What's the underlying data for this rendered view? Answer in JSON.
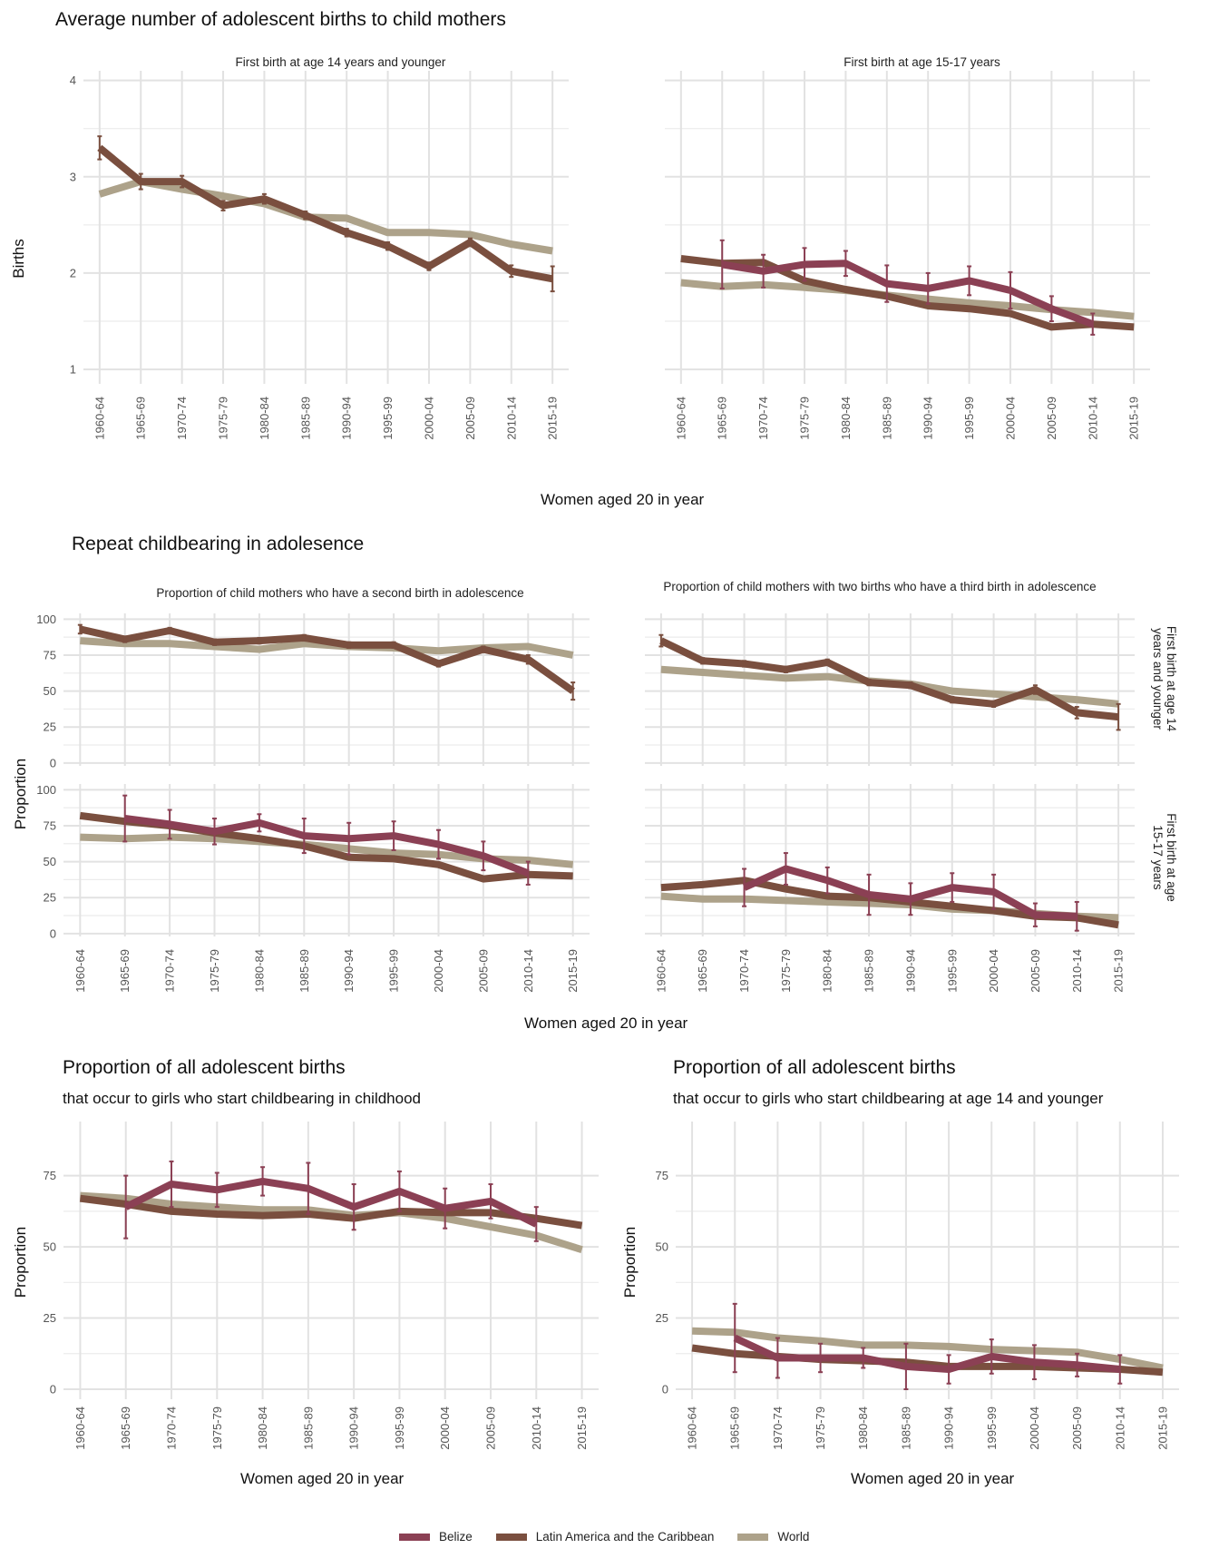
{
  "colors": {
    "Belize": "#8b4054",
    "Latin America and the Caribbean": "#7a4f3f",
    "World": "#ada28a"
  },
  "sections": {
    "s1": {
      "title": "Average number of adolescent births to child mothers",
      "xlabel": "Women aged 20 in year",
      "ylabel": "Births"
    },
    "s2": {
      "title": "Repeat childbearing in adolesence",
      "xlabel": "Women aged 20 in year",
      "ylabel": "Proportion",
      "col_titles": [
        "Proportion of child mothers who have a second birth in adolescence",
        "Proportion of child mothers with two births who have a third birth in adolescence"
      ],
      "row_strips": [
        "First birth at age 14 years and younger",
        "First birth at age 15-17 years"
      ]
    },
    "s3": [
      {
        "title": "Proportion of all adolescent births",
        "subtitle": "that occur to girls who start childbearing in childhood",
        "xlabel": "Women aged 20 in year",
        "ylabel": "Proportion"
      },
      {
        "title": "Proportion of all adolescent births",
        "subtitle": "that occur to girls who start childbearing at age 14 and younger",
        "xlabel": "Women aged 20 in year",
        "ylabel": "Proportion"
      }
    ]
  },
  "legend": [
    "Belize",
    "Latin America and the Caribbean",
    "World"
  ],
  "chart_data": [
    {
      "id": "c1",
      "type": "line",
      "title": "First birth at age 14 years and younger",
      "ylim": [
        0.85,
        4.1
      ],
      "yticks": [
        1,
        2,
        3,
        4
      ],
      "categories": [
        "1960-64",
        "1965-69",
        "1970-74",
        "1975-79",
        "1980-84",
        "1985-89",
        "1990-94",
        "1995-99",
        "2000-04",
        "2005-09",
        "2010-14",
        "2015-19"
      ],
      "series": [
        {
          "name": "World",
          "values": [
            2.82,
            2.95,
            2.87,
            2.8,
            2.72,
            2.58,
            2.57,
            2.42,
            2.42,
            2.4,
            2.3,
            2.23
          ]
        },
        {
          "name": "Latin America and the Caribbean",
          "values": [
            3.3,
            2.95,
            2.95,
            2.7,
            2.77,
            2.6,
            2.42,
            2.28,
            2.07,
            2.32,
            2.02,
            1.94
          ],
          "err": [
            0.12,
            0.08,
            0.06,
            0.05,
            0.05,
            0.04,
            0.04,
            0.04,
            0.04,
            0.04,
            0.06,
            0.13
          ]
        }
      ]
    },
    {
      "id": "c2",
      "type": "line",
      "title": "First birth at age 15-17 years",
      "ylim": [
        0.85,
        4.1
      ],
      "yticks": [
        1,
        2,
        3,
        4
      ],
      "categories": [
        "1960-64",
        "1965-69",
        "1970-74",
        "1975-79",
        "1980-84",
        "1985-89",
        "1990-94",
        "1995-99",
        "2000-04",
        "2005-09",
        "2010-14",
        "2015-19"
      ],
      "series": [
        {
          "name": "World",
          "values": [
            1.9,
            1.86,
            1.88,
            1.85,
            1.82,
            1.77,
            1.73,
            1.69,
            1.66,
            1.62,
            1.59,
            1.55
          ]
        },
        {
          "name": "Latin America and the Caribbean",
          "values": [
            2.15,
            2.1,
            2.11,
            1.92,
            1.83,
            1.76,
            1.66,
            1.63,
            1.58,
            1.44,
            1.47,
            1.44
          ]
        },
        {
          "name": "Belize",
          "values": [
            null,
            2.09,
            2.02,
            2.09,
            2.1,
            1.89,
            1.84,
            1.92,
            1.82,
            1.63,
            1.47,
            null
          ],
          "err": [
            null,
            0.25,
            0.17,
            0.17,
            0.13,
            0.19,
            0.16,
            0.15,
            0.19,
            0.13,
            0.11,
            null
          ]
        }
      ]
    },
    {
      "id": "c3",
      "type": "line",
      "title": "Proportion of child mothers who have a second birth in adolescence",
      "facet": "First birth at age 14 years and younger",
      "ylim": [
        -2,
        104
      ],
      "yticks": [
        0,
        25,
        50,
        75,
        100
      ],
      "categories": [
        "1960-64",
        "1965-69",
        "1970-74",
        "1975-79",
        "1980-84",
        "1985-89",
        "1990-94",
        "1995-99",
        "2000-04",
        "2005-09",
        "2010-14",
        "2015-19"
      ],
      "series": [
        {
          "name": "World",
          "values": [
            85,
            83,
            83,
            81,
            79,
            83,
            81,
            80,
            78,
            80,
            81,
            75
          ]
        },
        {
          "name": "Latin America and the Caribbean",
          "values": [
            93,
            86,
            92,
            84,
            85,
            87,
            82,
            82,
            69,
            79,
            72,
            50
          ],
          "err": [
            3,
            2,
            2,
            2,
            2,
            2,
            2,
            2,
            2,
            2,
            3,
            6
          ]
        }
      ]
    },
    {
      "id": "c4",
      "type": "line",
      "title": "Proportion of child mothers with two births who have a third birth in adolescence",
      "facet": "First birth at age 14 years and younger",
      "ylim": [
        -2,
        104
      ],
      "yticks": [
        0,
        25,
        50,
        75,
        100
      ],
      "categories": [
        "1960-64",
        "1965-69",
        "1970-74",
        "1975-79",
        "1980-84",
        "1985-89",
        "1990-94",
        "1995-99",
        "2000-04",
        "2005-09",
        "2010-14",
        "2015-19"
      ],
      "series": [
        {
          "name": "World",
          "values": [
            65,
            63,
            61,
            59,
            60,
            57,
            55,
            50,
            48,
            46,
            44,
            41
          ]
        },
        {
          "name": "Latin America and the Caribbean",
          "values": [
            85,
            71,
            69,
            65,
            70,
            56,
            54,
            44,
            41,
            51,
            35,
            32
          ],
          "err": [
            4,
            2,
            2,
            2,
            2,
            2,
            2,
            2,
            2,
            3,
            4,
            9
          ]
        }
      ]
    },
    {
      "id": "c5",
      "type": "line",
      "title": "Proportion of child mothers who have a second birth in adolescence",
      "facet": "First birth at age 15-17 years",
      "ylim": [
        -2,
        104
      ],
      "yticks": [
        0,
        25,
        50,
        75,
        100
      ],
      "categories": [
        "1960-64",
        "1965-69",
        "1970-74",
        "1975-79",
        "1980-84",
        "1985-89",
        "1990-94",
        "1995-99",
        "2000-04",
        "2005-09",
        "2010-14",
        "2015-19"
      ],
      "series": [
        {
          "name": "World",
          "values": [
            67,
            66,
            67,
            66,
            64,
            62,
            59,
            56,
            55,
            52,
            51,
            48
          ]
        },
        {
          "name": "Latin America and the Caribbean",
          "values": [
            82,
            78,
            75,
            70,
            66,
            61,
            53,
            52,
            48,
            38,
            41,
            40
          ]
        },
        {
          "name": "Belize",
          "values": [
            null,
            80,
            76,
            71,
            77,
            68,
            66,
            68,
            62,
            54,
            42,
            null
          ],
          "err": [
            null,
            16,
            10,
            9,
            6,
            12,
            11,
            10,
            10,
            10,
            8,
            null
          ]
        }
      ]
    },
    {
      "id": "c6",
      "type": "line",
      "title": "Proportion of child mothers with two births who have a third birth in adolescence",
      "facet": "First birth at age 15-17 years",
      "ylim": [
        -2,
        104
      ],
      "yticks": [
        0,
        25,
        50,
        75,
        100
      ],
      "categories": [
        "1960-64",
        "1965-69",
        "1970-74",
        "1975-79",
        "1980-84",
        "1985-89",
        "1990-94",
        "1995-99",
        "2000-04",
        "2005-09",
        "2010-14",
        "2015-19"
      ],
      "series": [
        {
          "name": "World",
          "values": [
            26,
            24,
            24,
            23,
            22,
            21,
            20,
            17,
            16,
            14,
            12,
            11
          ]
        },
        {
          "name": "Latin America and the Caribbean",
          "values": [
            32,
            34,
            37,
            31,
            26,
            25,
            22,
            19,
            16,
            12,
            11,
            6
          ]
        },
        {
          "name": "Belize",
          "values": [
            null,
            null,
            32,
            45,
            37,
            27,
            24,
            32,
            29,
            13,
            12,
            null
          ],
          "err": [
            null,
            null,
            13,
            11,
            9,
            14,
            11,
            10,
            12,
            8,
            10,
            null
          ]
        }
      ]
    },
    {
      "id": "c7",
      "type": "line",
      "title": "Proportion of all adolescent births",
      "subtitle": "that occur to girls who start childbearing in childhood",
      "ylim": [
        -3.5,
        94
      ],
      "yticks": [
        0,
        25,
        50,
        75
      ],
      "categories": [
        "1960-64",
        "1965-69",
        "1970-74",
        "1975-79",
        "1980-84",
        "1985-89",
        "1990-94",
        "1995-99",
        "2000-04",
        "2005-09",
        "2010-14",
        "2015-19"
      ],
      "series": [
        {
          "name": "World",
          "values": [
            68,
            67,
            65,
            64,
            63,
            63,
            61,
            62,
            60,
            57,
            54,
            49
          ]
        },
        {
          "name": "Latin America and the Caribbean",
          "values": [
            67,
            65,
            62.5,
            61.5,
            61,
            61.5,
            60,
            62.5,
            62,
            62,
            60,
            57.5
          ]
        },
        {
          "name": "Belize",
          "values": [
            null,
            64,
            72,
            70,
            73,
            70.5,
            64,
            69.5,
            63.5,
            66,
            58,
            null
          ],
          "err": [
            null,
            11,
            8,
            6,
            5,
            9,
            8,
            7,
            7,
            6,
            6,
            null
          ]
        }
      ]
    },
    {
      "id": "c8",
      "type": "line",
      "title": "Proportion of all adolescent births",
      "subtitle": "that occur to girls who start childbearing at age 14 and younger",
      "ylim": [
        -3.5,
        94
      ],
      "yticks": [
        0,
        25,
        50,
        75
      ],
      "categories": [
        "1960-64",
        "1965-69",
        "1970-74",
        "1975-79",
        "1980-84",
        "1985-89",
        "1990-94",
        "1995-99",
        "2000-04",
        "2005-09",
        "2010-14",
        "2015-19"
      ],
      "series": [
        {
          "name": "World",
          "values": [
            20.5,
            20,
            18,
            17,
            15.5,
            15.5,
            15,
            14,
            13.5,
            13,
            10.5,
            7.5
          ]
        },
        {
          "name": "Latin America and the Caribbean",
          "values": [
            14.5,
            12.5,
            11.5,
            10.5,
            10,
            9.5,
            8,
            8,
            8,
            7.5,
            7,
            6
          ]
        },
        {
          "name": "Belize",
          "values": [
            null,
            18,
            11,
            11,
            11,
            8,
            7,
            11.5,
            9.5,
            8.5,
            7,
            null
          ],
          "err": [
            null,
            12,
            7,
            5,
            3.5,
            8,
            5,
            6,
            6,
            4,
            5,
            null
          ]
        }
      ]
    }
  ]
}
